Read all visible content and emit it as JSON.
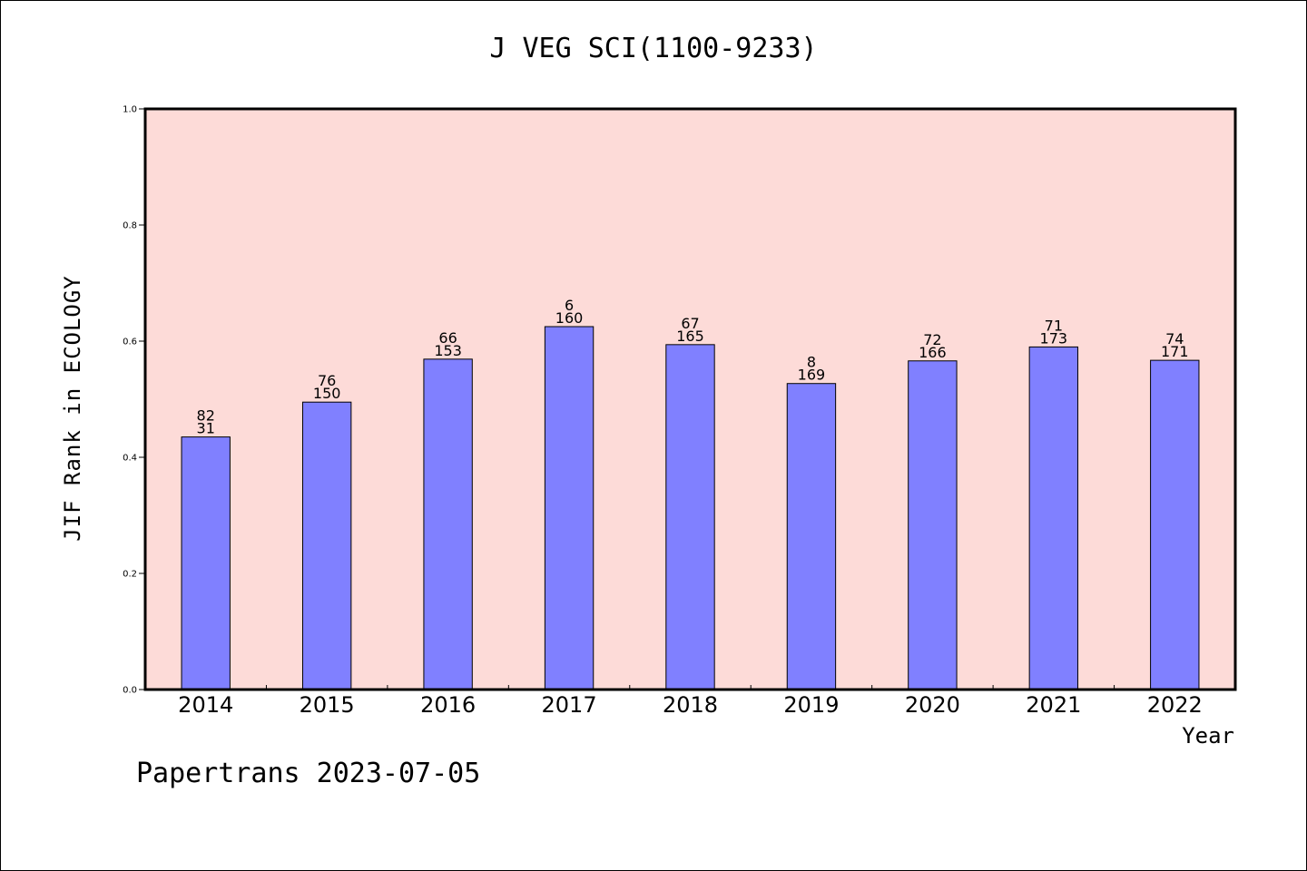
{
  "chart_data": {
    "type": "bar",
    "title": "J VEG SCI(1100-9233)",
    "xlabel": "Year",
    "ylabel": "JIF Rank in ECOLOGY",
    "ylim": [
      0.0,
      1.0
    ],
    "yticks": [
      "0.0",
      "0.2",
      "0.4",
      "0.6",
      "0.8",
      "1.0"
    ],
    "grid": false,
    "categories": [
      "2014",
      "2015",
      "2016",
      "2017",
      "2018",
      "2019",
      "2020",
      "2021",
      "2022"
    ],
    "values": [
      0.435,
      0.495,
      0.569,
      0.625,
      0.594,
      0.527,
      0.566,
      0.59,
      0.567
    ],
    "bar_labels": [
      {
        "top": "82",
        "bottom": "31"
      },
      {
        "top": "76",
        "bottom": "150"
      },
      {
        "top": "66",
        "bottom": "153"
      },
      {
        "top": "6",
        "bottom": "160"
      },
      {
        "top": "67",
        "bottom": "165"
      },
      {
        "top": "8",
        "bottom": "169"
      },
      {
        "top": "72",
        "bottom": "166"
      },
      {
        "top": "71",
        "bottom": "173"
      },
      {
        "top": "74",
        "bottom": "171"
      }
    ],
    "colors": {
      "bar": "#8080ff",
      "plot_bg": "#fddbd8",
      "axis": "#000000"
    }
  },
  "footer": "Papertrans 2023-07-05"
}
